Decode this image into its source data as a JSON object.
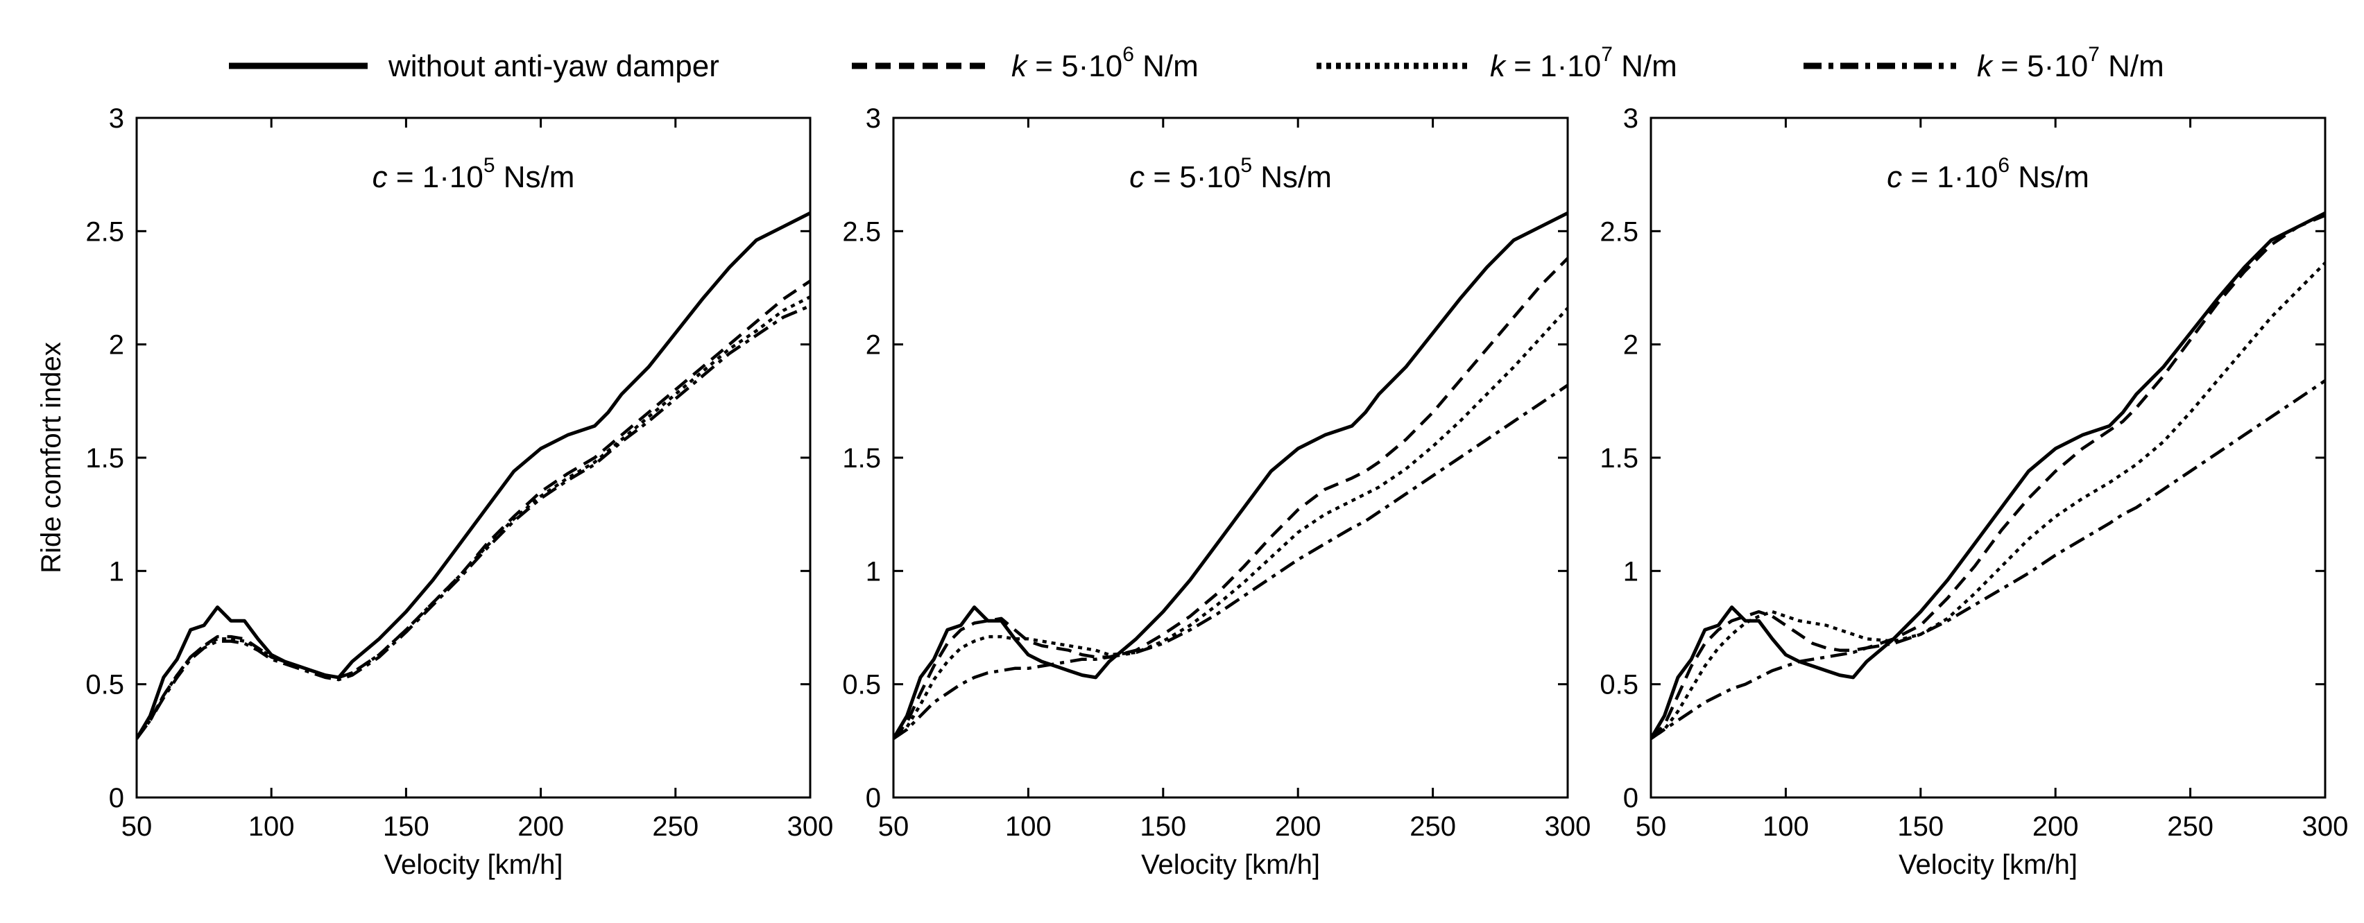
{
  "legend": [
    {
      "label": "without anti-yaw damper",
      "style": "solid"
    },
    {
      "k_var": "k",
      "k_eq": " = 5·10",
      "k_exp": "6",
      "k_unit": " N/m",
      "style": "dashed"
    },
    {
      "k_var": "k",
      "k_eq": " = 1·10",
      "k_exp": "7",
      "k_unit": " N/m",
      "style": "dotted"
    },
    {
      "k_var": "k",
      "k_eq": " = 5·10",
      "k_exp": "7",
      "k_unit": " N/m",
      "style": "dashdot"
    }
  ],
  "chart_data": [
    {
      "type": "line",
      "annotation": {
        "var": "c",
        "eq": " = 1·10",
        "exp": "5",
        "unit": " Ns/m"
      },
      "xlabel": "Velocity [km/h]",
      "ylabel": "Ride comfort index",
      "xlim": [
        50,
        300
      ],
      "ylim": [
        0,
        3
      ],
      "xticks": [
        "50",
        "100",
        "150",
        "200",
        "250",
        "300"
      ],
      "yticks": [
        "0",
        "0.5",
        "1",
        "1.5",
        "2",
        "2.5",
        "3"
      ],
      "x": [
        50,
        55,
        60,
        65,
        70,
        75,
        80,
        85,
        90,
        95,
        100,
        105,
        110,
        115,
        120,
        125,
        130,
        140,
        150,
        160,
        170,
        180,
        190,
        200,
        210,
        220,
        225,
        230,
        240,
        250,
        260,
        270,
        280,
        290,
        300
      ],
      "series": [
        {
          "name": "without anti-yaw damper",
          "style": "solid",
          "values": [
            0.26,
            0.36,
            0.53,
            0.61,
            0.74,
            0.76,
            0.84,
            0.78,
            0.78,
            0.7,
            0.63,
            0.6,
            0.58,
            0.56,
            0.54,
            0.53,
            0.6,
            0.7,
            0.82,
            0.96,
            1.12,
            1.28,
            1.44,
            1.54,
            1.6,
            1.64,
            1.7,
            1.78,
            1.9,
            2.05,
            2.2,
            2.34,
            2.46,
            2.52,
            2.58
          ]
        },
        {
          "name": "k = 5e6",
          "style": "dashed",
          "values": [
            0.26,
            0.34,
            0.45,
            0.54,
            0.62,
            0.67,
            0.71,
            0.71,
            0.7,
            0.66,
            0.62,
            0.6,
            0.58,
            0.56,
            0.54,
            0.53,
            0.55,
            0.63,
            0.74,
            0.86,
            0.98,
            1.12,
            1.24,
            1.35,
            1.43,
            1.5,
            1.55,
            1.6,
            1.7,
            1.8,
            1.9,
            2.0,
            2.1,
            2.2,
            2.28
          ]
        },
        {
          "name": "k = 1e7",
          "style": "dotted",
          "values": [
            0.26,
            0.34,
            0.45,
            0.54,
            0.62,
            0.67,
            0.7,
            0.7,
            0.69,
            0.66,
            0.62,
            0.6,
            0.58,
            0.56,
            0.54,
            0.53,
            0.55,
            0.63,
            0.74,
            0.86,
            0.98,
            1.11,
            1.23,
            1.33,
            1.41,
            1.48,
            1.53,
            1.58,
            1.68,
            1.78,
            1.88,
            1.98,
            2.06,
            2.15,
            2.21
          ]
        },
        {
          "name": "k = 5e7",
          "style": "dashdot",
          "values": [
            0.26,
            0.34,
            0.44,
            0.53,
            0.61,
            0.66,
            0.69,
            0.69,
            0.68,
            0.65,
            0.61,
            0.59,
            0.57,
            0.55,
            0.53,
            0.52,
            0.54,
            0.62,
            0.73,
            0.85,
            0.97,
            1.1,
            1.22,
            1.32,
            1.4,
            1.47,
            1.52,
            1.57,
            1.66,
            1.76,
            1.86,
            1.96,
            2.04,
            2.12,
            2.17
          ]
        }
      ]
    },
    {
      "type": "line",
      "annotation": {
        "var": "c",
        "eq": " = 5·10",
        "exp": "5",
        "unit": " Ns/m"
      },
      "xlabel": "Velocity [km/h]",
      "ylabel": "",
      "xlim": [
        50,
        300
      ],
      "ylim": [
        0,
        3
      ],
      "xticks": [
        "50",
        "100",
        "150",
        "200",
        "250",
        "300"
      ],
      "yticks": [
        "0",
        "0.5",
        "1",
        "1.5",
        "2",
        "2.5",
        "3"
      ],
      "x": [
        50,
        55,
        60,
        65,
        70,
        75,
        80,
        85,
        90,
        95,
        100,
        105,
        110,
        115,
        120,
        125,
        130,
        140,
        150,
        160,
        170,
        180,
        190,
        200,
        210,
        220,
        225,
        230,
        240,
        250,
        260,
        270,
        280,
        290,
        300
      ],
      "series": [
        {
          "name": "without anti-yaw damper",
          "style": "solid",
          "values": [
            0.26,
            0.36,
            0.53,
            0.61,
            0.74,
            0.76,
            0.84,
            0.78,
            0.78,
            0.7,
            0.63,
            0.6,
            0.58,
            0.56,
            0.54,
            0.53,
            0.6,
            0.7,
            0.82,
            0.96,
            1.12,
            1.28,
            1.44,
            1.54,
            1.6,
            1.64,
            1.7,
            1.78,
            1.9,
            2.05,
            2.2,
            2.34,
            2.46,
            2.52,
            2.58
          ]
        },
        {
          "name": "k = 5e6",
          "style": "dashed",
          "values": [
            0.26,
            0.33,
            0.46,
            0.58,
            0.68,
            0.74,
            0.77,
            0.78,
            0.79,
            0.74,
            0.69,
            0.67,
            0.66,
            0.65,
            0.63,
            0.62,
            0.62,
            0.65,
            0.72,
            0.8,
            0.9,
            1.02,
            1.15,
            1.27,
            1.36,
            1.41,
            1.44,
            1.48,
            1.58,
            1.7,
            1.84,
            1.98,
            2.12,
            2.26,
            2.38
          ]
        },
        {
          "name": "k = 1e7",
          "style": "dotted",
          "values": [
            0.26,
            0.31,
            0.41,
            0.52,
            0.6,
            0.66,
            0.69,
            0.71,
            0.71,
            0.7,
            0.7,
            0.69,
            0.68,
            0.67,
            0.66,
            0.65,
            0.63,
            0.64,
            0.69,
            0.76,
            0.85,
            0.95,
            1.06,
            1.17,
            1.25,
            1.31,
            1.34,
            1.37,
            1.45,
            1.55,
            1.66,
            1.78,
            1.9,
            2.03,
            2.16
          ]
        },
        {
          "name": "k = 5e7",
          "style": "dashdot",
          "values": [
            0.26,
            0.3,
            0.36,
            0.42,
            0.46,
            0.5,
            0.53,
            0.55,
            0.56,
            0.57,
            0.57,
            0.58,
            0.59,
            0.6,
            0.61,
            0.61,
            0.62,
            0.64,
            0.68,
            0.74,
            0.81,
            0.89,
            0.97,
            1.05,
            1.12,
            1.19,
            1.22,
            1.26,
            1.34,
            1.42,
            1.5,
            1.58,
            1.66,
            1.74,
            1.82
          ]
        }
      ]
    },
    {
      "type": "line",
      "annotation": {
        "var": "c",
        "eq": " = 1·10",
        "exp": "6",
        "unit": " Ns/m"
      },
      "xlabel": "Velocity [km/h]",
      "ylabel": "",
      "xlim": [
        50,
        300
      ],
      "ylim": [
        0,
        3
      ],
      "xticks": [
        "50",
        "100",
        "150",
        "200",
        "250",
        "300"
      ],
      "yticks": [
        "0",
        "0.5",
        "1",
        "1.5",
        "2",
        "2.5",
        "3"
      ],
      "x": [
        50,
        55,
        60,
        65,
        70,
        75,
        80,
        85,
        90,
        95,
        100,
        105,
        110,
        115,
        120,
        125,
        130,
        140,
        150,
        160,
        170,
        180,
        190,
        200,
        210,
        220,
        225,
        230,
        240,
        250,
        260,
        270,
        280,
        290,
        300
      ],
      "series": [
        {
          "name": "without anti-yaw damper",
          "style": "solid",
          "values": [
            0.26,
            0.36,
            0.53,
            0.61,
            0.74,
            0.76,
            0.84,
            0.78,
            0.78,
            0.7,
            0.63,
            0.6,
            0.58,
            0.56,
            0.54,
            0.53,
            0.6,
            0.7,
            0.82,
            0.96,
            1.12,
            1.28,
            1.44,
            1.54,
            1.6,
            1.64,
            1.7,
            1.78,
            1.9,
            2.05,
            2.2,
            2.34,
            2.46,
            2.52,
            2.58
          ]
        },
        {
          "name": "k = 5e6",
          "style": "dashed",
          "values": [
            0.26,
            0.32,
            0.45,
            0.58,
            0.68,
            0.74,
            0.78,
            0.8,
            0.82,
            0.8,
            0.76,
            0.72,
            0.68,
            0.66,
            0.65,
            0.65,
            0.66,
            0.7,
            0.76,
            0.88,
            1.02,
            1.18,
            1.32,
            1.44,
            1.54,
            1.62,
            1.66,
            1.72,
            1.86,
            2.02,
            2.18,
            2.32,
            2.44,
            2.52,
            2.57
          ]
        },
        {
          "name": "k = 1e7",
          "style": "dotted",
          "values": [
            0.26,
            0.3,
            0.38,
            0.48,
            0.58,
            0.66,
            0.72,
            0.77,
            0.8,
            0.82,
            0.8,
            0.78,
            0.77,
            0.76,
            0.74,
            0.72,
            0.7,
            0.69,
            0.72,
            0.79,
            0.9,
            1.02,
            1.14,
            1.24,
            1.32,
            1.39,
            1.43,
            1.47,
            1.57,
            1.7,
            1.84,
            1.98,
            2.12,
            2.24,
            2.36
          ]
        },
        {
          "name": "k = 5e7",
          "style": "dashdot",
          "values": [
            0.26,
            0.3,
            0.34,
            0.38,
            0.42,
            0.45,
            0.48,
            0.5,
            0.53,
            0.56,
            0.58,
            0.6,
            0.61,
            0.62,
            0.63,
            0.64,
            0.66,
            0.68,
            0.72,
            0.78,
            0.85,
            0.92,
            0.99,
            1.07,
            1.14,
            1.21,
            1.25,
            1.28,
            1.36,
            1.44,
            1.52,
            1.6,
            1.68,
            1.76,
            1.84
          ]
        }
      ]
    }
  ]
}
